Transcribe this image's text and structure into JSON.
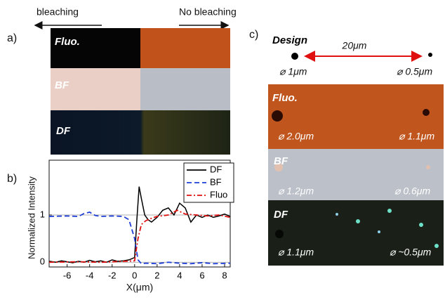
{
  "panel_a": {
    "label": "a)",
    "arrow_left": "bleaching",
    "arrow_right": "No bleaching",
    "strips": [
      "Fluo.",
      "BF",
      "DF"
    ]
  },
  "panel_c": {
    "label": "c)",
    "scale": "20μm",
    "sections": [
      {
        "title": "Design",
        "left": "⌀ 1μm",
        "right": "⌀ 0.5μm"
      },
      {
        "title": "Fluo.",
        "left": "⌀ 2.0μm",
        "right": "⌀ 1.1μm"
      },
      {
        "title": "BF",
        "left": "⌀ 1.2μm",
        "right": "⌀ 0.6μm"
      },
      {
        "title": "DF",
        "left": "⌀ 1.1μm",
        "right": "⌀ ~0.5μm"
      }
    ]
  },
  "chart_data": {
    "type": "line",
    "label": "b)",
    "xlabel": "X(μm)",
    "ylabel": "Normalized Intensity",
    "xlim": [
      -7.6,
      8.5
    ],
    "ylim": [
      -0.1,
      2.16
    ],
    "xticks": [
      -6,
      -4,
      -2,
      0,
      2,
      4,
      6,
      8
    ],
    "yticks": [
      0,
      1
    ],
    "grid": true,
    "legend": "upper right",
    "series": [
      {
        "name": "DF",
        "color": "#000000",
        "style": "solid",
        "x": [
          -7.6,
          -7,
          -6.5,
          -6,
          -5.5,
          -5,
          -4.5,
          -4,
          -3.5,
          -3,
          -2.5,
          -2,
          -1.5,
          -1,
          -0.5,
          0,
          0.2,
          0.4,
          0.6,
          0.9,
          1.2,
          1.5,
          2,
          2.5,
          3,
          3.5,
          4,
          4.5,
          5,
          5.5,
          6,
          6.5,
          7,
          7.5,
          8,
          8.5
        ],
        "values": [
          0.02,
          0,
          0.03,
          0.01,
          -0.01,
          0.02,
          0,
          0.04,
          0.01,
          0.03,
          0,
          0.05,
          0.02,
          0.03,
          0.05,
          0.1,
          0.9,
          1.6,
          1.35,
          1.0,
          0.9,
          0.85,
          0.95,
          1.1,
          1.15,
          1.0,
          1.25,
          1.15,
          0.85,
          1.0,
          0.95,
          1.0,
          0.95,
          0.98,
          1.02,
          0.97
        ]
      },
      {
        "name": "BF",
        "color": "#1f3fd6",
        "style": "dashed",
        "x": [
          -7.6,
          -6,
          -5,
          -4.5,
          -4,
          -3.5,
          -3,
          -2,
          -1,
          -0.5,
          0,
          0.3,
          0.6,
          1,
          2,
          3,
          4,
          5,
          6,
          7,
          8.5
        ],
        "values": [
          0.97,
          0.98,
          0.97,
          1.03,
          1.06,
          0.99,
          0.97,
          0.98,
          0.97,
          0.9,
          0.5,
          0.05,
          -0.03,
          -0.02,
          -0.03,
          0,
          -0.02,
          -0.03,
          -0.01,
          -0.03,
          -0.02
        ]
      },
      {
        "name": "Fluo",
        "color": "#e01010",
        "style": "dashdot",
        "x": [
          -7.6,
          -5,
          -3,
          -1,
          0,
          0.3,
          0.6,
          1,
          1.5,
          2,
          3,
          3.8,
          4.5,
          5.5,
          6.5,
          7.5,
          8.5
        ],
        "values": [
          0,
          0.01,
          0,
          0.02,
          0.03,
          0.5,
          0.8,
          0.88,
          0.93,
          0.97,
          1.0,
          1.1,
          1.02,
          1.0,
          0.98,
          1.0,
          0.95
        ]
      }
    ]
  }
}
